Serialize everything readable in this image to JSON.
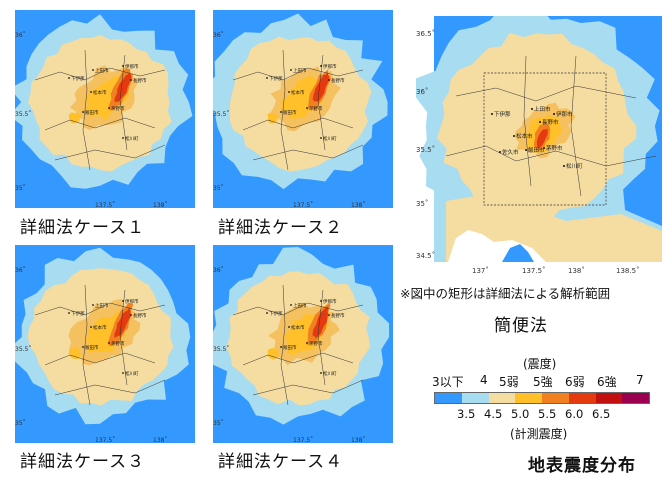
{
  "panels": [
    {
      "label": "詳細法ケース１"
    },
    {
      "label": "詳細法ケース２"
    },
    {
      "label": "詳細法ケース３"
    },
    {
      "label": "詳細法ケース４"
    }
  ],
  "small_map_ticks": {
    "lat": [
      "36˚",
      "35.5˚",
      "35˚"
    ],
    "lon": [
      "137.5˚",
      "138˚"
    ]
  },
  "small_map_cities": [
    "上田市",
    "下伊那",
    "伊那市",
    "松本市",
    "長野市",
    "飯田市",
    "茅野市",
    "松川町"
  ],
  "simple_map": {
    "label": "簡便法",
    "note": "※図中の矩形は詳細法による解析範囲",
    "lat_ticks": [
      "36.5˚",
      "36˚",
      "35.5˚",
      "35˚",
      "34.5˚"
    ],
    "lon_ticks": [
      "137˚",
      "137.5˚",
      "138˚",
      "138.5˚"
    ],
    "cities": [
      "上田市",
      "下伊那",
      "伊那市",
      "松本市",
      "長野市",
      "飯田市",
      "茅野市",
      "松川町",
      "佐久市"
    ]
  },
  "legend": {
    "title": "(震度)",
    "classes": [
      "3以下",
      "4",
      "5弱",
      "5強",
      "6弱",
      "6強",
      "7"
    ],
    "values": [
      "3.5",
      "4.5",
      "5.0",
      "5.5",
      "6.0",
      "6.5"
    ],
    "subtitle": "(計測震度)",
    "colors": [
      "#3399ff",
      "#a8dcf0",
      "#f5dca0",
      "#ffc02a",
      "#f08020",
      "#e53a10",
      "#c01010",
      "#9b0050"
    ]
  },
  "distribution_title": "地表震度分布"
}
